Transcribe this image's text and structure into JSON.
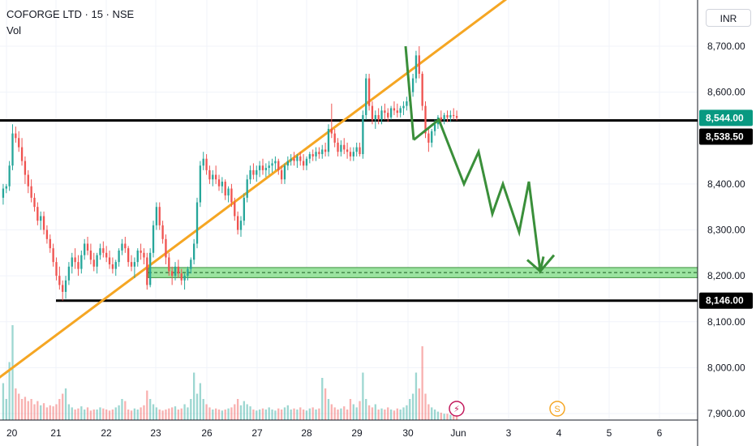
{
  "header": {
    "symbol_line": "COFORGE LTD · 15 · NSE",
    "volume_label": "Vol",
    "currency": "INR"
  },
  "colors": {
    "up": "#26a69a",
    "down": "#ef5350",
    "trendline": "#f5a623",
    "level_line": "#000000",
    "projection": "#3a8f3a",
    "zone_fill": "#9be3a0",
    "zone_border": "#3a8f3a",
    "price_tag": "#089981",
    "grid": "#f0f3fa"
  },
  "chart_data": {
    "type": "candlestick",
    "y_axis": {
      "ticks": [
        8700,
        8600,
        8400,
        8300,
        8200,
        8100,
        8000,
        7900
      ],
      "tick_labels": [
        "8,700.00",
        "8,600.00",
        "8,400.00",
        "8,300.00",
        "8,200.00",
        "8,100.00",
        "8,000.00",
        "7,900.00"
      ],
      "range": [
        7890,
        8800
      ]
    },
    "x_axis": {
      "labels": [
        "20",
        "21",
        "22",
        "23",
        "26",
        "27",
        "28",
        "29",
        "30",
        "Jun",
        "3",
        "4",
        "5",
        "6"
      ]
    },
    "price_tags": [
      {
        "value": 8544.0,
        "label": "8,544.00",
        "style": "last-price"
      },
      {
        "value": 8538.5,
        "label": "8,538.50",
        "style": "level"
      },
      {
        "value": 8146.0,
        "label": "8,146.00",
        "style": "level"
      }
    ],
    "levels": [
      {
        "value": 8538.5
      },
      {
        "value": 8146.0
      }
    ],
    "support_zone": {
      "low": 8196,
      "high": 8218
    },
    "trendline": {
      "from": {
        "x": "20",
        "y": 7990
      },
      "to": {
        "x": "28",
        "y": 8478
      }
    },
    "projection_path": [
      8496,
      8540,
      8400,
      8470,
      8335,
      8400,
      8295,
      8405,
      8210,
      8245
    ],
    "candles": [
      [
        8370,
        8400,
        8355,
        8390
      ],
      [
        8390,
        8400,
        8380,
        8395
      ],
      [
        8395,
        8450,
        8385,
        8440
      ],
      [
        8440,
        8530,
        8430,
        8510
      ],
      [
        8510,
        8525,
        8490,
        8500
      ],
      [
        8500,
        8515,
        8470,
        8480
      ],
      [
        8480,
        8500,
        8440,
        8450
      ],
      [
        8450,
        8460,
        8400,
        8420
      ],
      [
        8420,
        8430,
        8380,
        8395
      ],
      [
        8395,
        8410,
        8360,
        8370
      ],
      [
        8370,
        8380,
        8340,
        8350
      ],
      [
        8350,
        8360,
        8310,
        8320
      ],
      [
        8320,
        8340,
        8300,
        8330
      ],
      [
        8330,
        8340,
        8290,
        8300
      ],
      [
        8300,
        8310,
        8270,
        8280
      ],
      [
        8280,
        8290,
        8250,
        8260
      ],
      [
        8260,
        8270,
        8220,
        8230
      ],
      [
        8230,
        8240,
        8190,
        8200
      ],
      [
        8200,
        8220,
        8170,
        8180
      ],
      [
        8180,
        8190,
        8146,
        8165
      ],
      [
        8165,
        8200,
        8150,
        8190
      ],
      [
        8190,
        8230,
        8180,
        8220
      ],
      [
        8220,
        8250,
        8205,
        8240
      ],
      [
        8240,
        8260,
        8215,
        8230
      ],
      [
        8230,
        8245,
        8200,
        8215
      ],
      [
        8215,
        8255,
        8205,
        8245
      ],
      [
        8245,
        8280,
        8235,
        8270
      ],
      [
        8270,
        8285,
        8245,
        8255
      ],
      [
        8255,
        8270,
        8225,
        8235
      ],
      [
        8235,
        8250,
        8210,
        8220
      ],
      [
        8220,
        8250,
        8205,
        8245
      ],
      [
        8245,
        8270,
        8235,
        8260
      ],
      [
        8260,
        8275,
        8240,
        8250
      ],
      [
        8250,
        8265,
        8230,
        8240
      ],
      [
        8240,
        8255,
        8215,
        8225
      ],
      [
        8225,
        8240,
        8205,
        8215
      ],
      [
        8215,
        8235,
        8200,
        8230
      ],
      [
        8230,
        8260,
        8220,
        8255
      ],
      [
        8255,
        8280,
        8245,
        8270
      ],
      [
        8270,
        8285,
        8250,
        8260
      ],
      [
        8260,
        8265,
        8220,
        8230
      ],
      [
        8230,
        8245,
        8210,
        8220
      ],
      [
        8220,
        8240,
        8195,
        8230
      ],
      [
        8230,
        8260,
        8220,
        8255
      ],
      [
        8255,
        8270,
        8235,
        8250
      ],
      [
        8250,
        8260,
        8225,
        8240
      ],
      [
        8240,
        8250,
        8170,
        8180
      ],
      [
        8180,
        8260,
        8175,
        8250
      ],
      [
        8250,
        8320,
        8240,
        8310
      ],
      [
        8310,
        8360,
        8300,
        8350
      ],
      [
        8350,
        8360,
        8300,
        8310
      ],
      [
        8310,
        8320,
        8270,
        8280
      ],
      [
        8280,
        8290,
        8225,
        8240
      ],
      [
        8240,
        8250,
        8200,
        8210
      ],
      [
        8210,
        8220,
        8180,
        8200
      ],
      [
        8200,
        8230,
        8190,
        8220
      ],
      [
        8220,
        8235,
        8195,
        8205
      ],
      [
        8205,
        8215,
        8180,
        8190
      ],
      [
        8190,
        8205,
        8170,
        8200
      ],
      [
        8200,
        8220,
        8190,
        8215
      ],
      [
        8215,
        8240,
        8205,
        8235
      ],
      [
        8235,
        8280,
        8225,
        8270
      ],
      [
        8270,
        8370,
        8260,
        8360
      ],
      [
        8360,
        8450,
        8350,
        8440
      ],
      [
        8440,
        8470,
        8430,
        8455
      ],
      [
        8455,
        8465,
        8420,
        8430
      ],
      [
        8430,
        8440,
        8400,
        8410
      ],
      [
        8410,
        8430,
        8395,
        8420
      ],
      [
        8420,
        8440,
        8400,
        8410
      ],
      [
        8410,
        8420,
        8385,
        8395
      ],
      [
        8395,
        8415,
        8380,
        8405
      ],
      [
        8405,
        8410,
        8365,
        8375
      ],
      [
        8375,
        8395,
        8360,
        8390
      ],
      [
        8390,
        8400,
        8350,
        8360
      ],
      [
        8360,
        8370,
        8320,
        8330
      ],
      [
        8330,
        8340,
        8290,
        8300
      ],
      [
        8300,
        8330,
        8285,
        8320
      ],
      [
        8320,
        8380,
        8310,
        8370
      ],
      [
        8370,
        8420,
        8360,
        8410
      ],
      [
        8410,
        8440,
        8400,
        8430
      ],
      [
        8430,
        8445,
        8410,
        8420
      ],
      [
        8420,
        8440,
        8405,
        8430
      ],
      [
        8430,
        8450,
        8415,
        8440
      ],
      [
        8440,
        8455,
        8420,
        8430
      ],
      [
        8430,
        8445,
        8415,
        8435
      ],
      [
        8435,
        8450,
        8420,
        8440
      ],
      [
        8440,
        8455,
        8425,
        8445
      ],
      [
        8445,
        8460,
        8430,
        8450
      ],
      [
        8450,
        8455,
        8420,
        8430
      ],
      [
        8430,
        8440,
        8400,
        8410
      ],
      [
        8410,
        8445,
        8400,
        8440
      ],
      [
        8440,
        8460,
        8430,
        8450
      ],
      [
        8450,
        8465,
        8440,
        8455
      ],
      [
        8455,
        8470,
        8440,
        8450
      ],
      [
        8450,
        8465,
        8435,
        8460
      ],
      [
        8460,
        8470,
        8440,
        8450
      ],
      [
        8450,
        8465,
        8430,
        8440
      ],
      [
        8440,
        8460,
        8430,
        8455
      ],
      [
        8455,
        8470,
        8445,
        8465
      ],
      [
        8465,
        8475,
        8450,
        8460
      ],
      [
        8460,
        8480,
        8450,
        8470
      ],
      [
        8470,
        8480,
        8455,
        8465
      ],
      [
        8465,
        8485,
        8455,
        8475
      ],
      [
        8475,
        8490,
        8460,
        8470
      ],
      [
        8470,
        8530,
        8460,
        8520
      ],
      [
        8520,
        8575,
        8500,
        8510
      ],
      [
        8510,
        8520,
        8480,
        8490
      ],
      [
        8490,
        8500,
        8460,
        8470
      ],
      [
        8470,
        8495,
        8460,
        8485
      ],
      [
        8485,
        8500,
        8465,
        8475
      ],
      [
        8475,
        8490,
        8455,
        8470
      ],
      [
        8470,
        8480,
        8450,
        8460
      ],
      [
        8460,
        8480,
        8450,
        8470
      ],
      [
        8470,
        8490,
        8460,
        8480
      ],
      [
        8480,
        8490,
        8460,
        8465
      ],
      [
        8465,
        8560,
        8455,
        8550
      ],
      [
        8550,
        8640,
        8540,
        8630
      ],
      [
        8630,
        8640,
        8560,
        8570
      ],
      [
        8570,
        8580,
        8530,
        8540
      ],
      [
        8540,
        8560,
        8520,
        8550
      ],
      [
        8550,
        8565,
        8530,
        8540
      ],
      [
        8540,
        8570,
        8530,
        8560
      ],
      [
        8560,
        8575,
        8540,
        8555
      ],
      [
        8555,
        8565,
        8535,
        8545
      ],
      [
        8545,
        8570,
        8540,
        8565
      ],
      [
        8565,
        8580,
        8550,
        8560
      ],
      [
        8560,
        8575,
        8545,
        8555
      ],
      [
        8555,
        8570,
        8545,
        8565
      ],
      [
        8565,
        8580,
        8550,
        8570
      ],
      [
        8570,
        8590,
        8560,
        8580
      ],
      [
        8580,
        8610,
        8570,
        8600
      ],
      [
        8600,
        8640,
        8590,
        8630
      ],
      [
        8630,
        8690,
        8620,
        8680
      ],
      [
        8680,
        8700,
        8630,
        8640
      ],
      [
        8640,
        8645,
        8560,
        8570
      ],
      [
        8570,
        8580,
        8500,
        8510
      ],
      [
        8510,
        8520,
        8470,
        8490
      ],
      [
        8490,
        8520,
        8480,
        8515
      ],
      [
        8515,
        8540,
        8505,
        8530
      ],
      [
        8530,
        8550,
        8520,
        8545
      ],
      [
        8545,
        8560,
        8530,
        8540
      ],
      [
        8540,
        8555,
        8530,
        8550
      ],
      [
        8550,
        8560,
        8535,
        8545
      ],
      [
        8545,
        8560,
        8535,
        8550
      ],
      [
        8550,
        8565,
        8540,
        8548
      ],
      [
        8548,
        8560,
        8538,
        8544
      ]
    ],
    "volume": [
      0.35,
      0.2,
      0.55,
      0.9,
      0.3,
      0.25,
      0.2,
      0.22,
      0.18,
      0.2,
      0.15,
      0.18,
      0.14,
      0.16,
      0.12,
      0.14,
      0.13,
      0.15,
      0.2,
      0.25,
      0.3,
      0.15,
      0.12,
      0.1,
      0.11,
      0.13,
      0.1,
      0.12,
      0.09,
      0.1,
      0.1,
      0.12,
      0.11,
      0.1,
      0.09,
      0.1,
      0.12,
      0.14,
      0.2,
      0.18,
      0.1,
      0.09,
      0.11,
      0.1,
      0.12,
      0.14,
      0.28,
      0.2,
      0.15,
      0.12,
      0.1,
      0.09,
      0.1,
      0.11,
      0.12,
      0.13,
      0.1,
      0.11,
      0.15,
      0.12,
      0.2,
      0.45,
      0.25,
      0.35,
      0.2,
      0.15,
      0.12,
      0.1,
      0.11,
      0.1,
      0.09,
      0.1,
      0.11,
      0.12,
      0.15,
      0.2,
      0.14,
      0.18,
      0.15,
      0.13,
      0.1,
      0.09,
      0.1,
      0.11,
      0.1,
      0.12,
      0.1,
      0.09,
      0.11,
      0.1,
      0.12,
      0.14,
      0.1,
      0.11,
      0.1,
      0.12,
      0.1,
      0.09,
      0.11,
      0.12,
      0.1,
      0.11,
      0.4,
      0.3,
      0.2,
      0.15,
      0.12,
      0.1,
      0.11,
      0.13,
      0.1,
      0.2,
      0.15,
      0.12,
      0.18,
      0.45,
      0.2,
      0.14,
      0.12,
      0.15,
      0.1,
      0.11,
      0.1,
      0.12,
      0.1,
      0.09,
      0.11,
      0.1,
      0.12,
      0.14,
      0.2,
      0.25,
      0.45,
      0.3,
      0.7,
      0.25,
      0.15,
      0.12,
      0.1,
      0.08,
      0.07,
      0.06,
      0.06,
      0.05,
      0.05,
      0.04,
      0.04
    ],
    "event_markers": [
      {
        "x_index": 9.0,
        "symbol": "⚡",
        "color": "#c2185b"
      },
      {
        "x_index": 11.0,
        "symbol": "S",
        "color": "#f5a623"
      }
    ]
  }
}
